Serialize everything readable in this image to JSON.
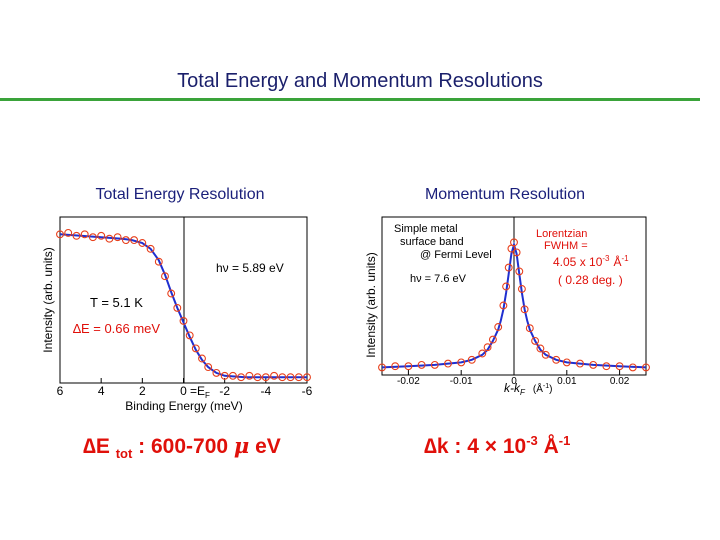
{
  "slide": {
    "title": "Total Energy and Momentum Resolutions"
  },
  "colors": {
    "title": "#1a1f6b",
    "rule": "#3aa33a",
    "marker": "#e8401c",
    "fit": "#1f2fd0",
    "accent": "#e0100a"
  },
  "formulas": {
    "energy": {
      "delta": "∆E",
      "sub": "tot",
      "rest": ": 600-700",
      "mu": "μ",
      "unit": "eV"
    },
    "momentum": {
      "delta": "∆k",
      "colon": ":",
      "value": "4",
      "times": "×",
      "base": "10",
      "exp": "-3",
      "unit": "Å",
      "unit_exp": "-1"
    }
  },
  "chart_data": [
    {
      "type": "scatter",
      "title": "Total Energy Resolution",
      "xlabel": "Binding Energy (meV)",
      "ylabel": "Intensity (arb. units)",
      "xlim": [
        6,
        -6
      ],
      "ylim": [
        0,
        1.15
      ],
      "xticks": [
        "6",
        "4",
        "2",
        "0",
        "-2",
        "-4",
        "-6"
      ],
      "xtick_values": [
        6,
        4,
        2,
        0,
        -2,
        -4,
        -6
      ],
      "fermi_label": "=E",
      "fermi_sub": "F",
      "annotations": {
        "photon": "hν = 5.89 eV",
        "temperature": "T = 5.1 K",
        "resolution": "∆E = 0.66 meV"
      },
      "series": [
        {
          "kind": "markers",
          "x": [
            6.0,
            5.6,
            5.2,
            4.8,
            4.4,
            4.0,
            3.6,
            3.2,
            2.8,
            2.4,
            2.0,
            1.6,
            1.2,
            0.9,
            0.6,
            0.3,
            0.0,
            -0.3,
            -0.6,
            -0.9,
            -1.2,
            -1.6,
            -2.0,
            -2.4,
            -2.8,
            -3.2,
            -3.6,
            -4.0,
            -4.4,
            -4.8,
            -5.2,
            -5.6,
            -6.0
          ],
          "y": [
            1.03,
            1.04,
            1.02,
            1.03,
            1.01,
            1.02,
            1.0,
            1.01,
            0.99,
            0.99,
            0.97,
            0.93,
            0.84,
            0.74,
            0.62,
            0.52,
            0.43,
            0.33,
            0.24,
            0.17,
            0.11,
            0.07,
            0.05,
            0.05,
            0.04,
            0.05,
            0.04,
            0.04,
            0.05,
            0.04,
            0.04,
            0.04,
            0.04
          ]
        },
        {
          "kind": "fit",
          "x": [
            6.0,
            5.0,
            4.0,
            3.0,
            2.5,
            2.0,
            1.6,
            1.2,
            0.9,
            0.6,
            0.3,
            0.0,
            -0.3,
            -0.6,
            -0.9,
            -1.2,
            -1.6,
            -2.0,
            -3.0,
            -4.0,
            -5.0,
            -6.0
          ],
          "y": [
            1.03,
            1.02,
            1.01,
            1.0,
            0.99,
            0.97,
            0.93,
            0.85,
            0.75,
            0.63,
            0.52,
            0.42,
            0.32,
            0.23,
            0.16,
            0.11,
            0.07,
            0.05,
            0.04,
            0.04,
            0.04,
            0.04
          ]
        }
      ]
    },
    {
      "type": "scatter",
      "title": "Momentum Resolution",
      "xlabel_main": "k-k",
      "xlabel_sub": "F",
      "xlabel_unit": "(Å",
      "xlabel_unit_exp": "-1",
      "xlabel_close": ")",
      "ylabel": "Intensity (arb. units)",
      "xlim": [
        -0.025,
        0.025
      ],
      "ylim": [
        0,
        1.25
      ],
      "xticks": [
        "-0.02",
        "-0.01",
        "0",
        "0.01",
        "0.02"
      ],
      "xtick_values": [
        -0.02,
        -0.01,
        0,
        0.01,
        0.02
      ],
      "annotations": {
        "sample": [
          "Simple metal",
          "surface band",
          "@ Fermi Level"
        ],
        "photon": "hν = 7.6 eV",
        "lorentzian": [
          "Lorentzian",
          "FWHM ="
        ],
        "fwhm_value": "4.05 x 10",
        "fwhm_exp": "-3",
        "fwhm_unit": "Å",
        "fwhm_unit_exp": "-1",
        "angle": "( 0.28  deg. )"
      },
      "series": [
        {
          "kind": "markers",
          "x": [
            -0.025,
            -0.0225,
            -0.02,
            -0.0175,
            -0.015,
            -0.0125,
            -0.01,
            -0.008,
            -0.006,
            -0.005,
            -0.004,
            -0.003,
            -0.002,
            -0.0015,
            -0.001,
            -0.0005,
            0.0,
            0.0005,
            0.001,
            0.0015,
            0.002,
            0.003,
            0.004,
            0.005,
            0.006,
            0.008,
            0.01,
            0.0125,
            0.015,
            0.0175,
            0.02,
            0.0225,
            0.025
          ],
          "y": [
            0.06,
            0.07,
            0.07,
            0.08,
            0.08,
            0.09,
            0.1,
            0.12,
            0.17,
            0.22,
            0.28,
            0.38,
            0.55,
            0.7,
            0.85,
            1.0,
            1.05,
            0.97,
            0.82,
            0.68,
            0.52,
            0.37,
            0.27,
            0.21,
            0.16,
            0.12,
            0.1,
            0.09,
            0.08,
            0.07,
            0.07,
            0.06,
            0.06
          ]
        },
        {
          "kind": "fit",
          "x": [
            -0.025,
            -0.02,
            -0.015,
            -0.01,
            -0.008,
            -0.006,
            -0.005,
            -0.004,
            -0.003,
            -0.0025,
            -0.002,
            -0.0015,
            -0.001,
            -0.0005,
            0.0,
            0.0005,
            0.001,
            0.0015,
            0.002,
            0.0025,
            0.003,
            0.004,
            0.005,
            0.006,
            0.008,
            0.01,
            0.015,
            0.02,
            0.025
          ],
          "y": [
            0.06,
            0.07,
            0.08,
            0.1,
            0.12,
            0.16,
            0.2,
            0.27,
            0.36,
            0.43,
            0.52,
            0.65,
            0.8,
            0.96,
            1.03,
            0.96,
            0.8,
            0.65,
            0.52,
            0.43,
            0.36,
            0.27,
            0.2,
            0.16,
            0.12,
            0.1,
            0.08,
            0.07,
            0.06
          ]
        }
      ]
    }
  ]
}
